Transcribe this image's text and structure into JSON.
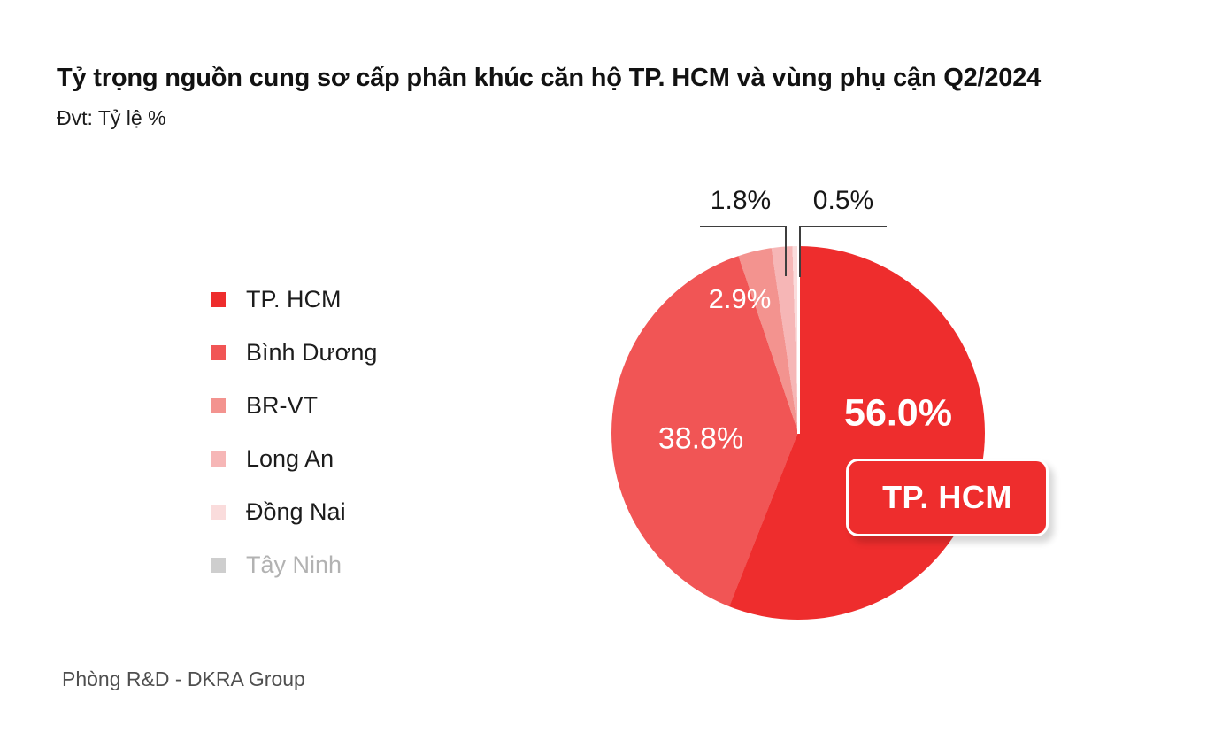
{
  "header": {
    "title": "Tỷ trọng nguồn cung sơ cấp phân khúc căn hộ TP. HCM và vùng phụ cận Q2/2024",
    "unit": "Đvt: Tỷ lệ %"
  },
  "footer": {
    "source": "Phòng R&D - DKRA Group"
  },
  "colors": {
    "accent_red": "#ee2d2d",
    "leader_line": "#3e3e3e",
    "muted_text": "#b2b2b2",
    "background": "#ffffff"
  },
  "chart_data": {
    "type": "pie",
    "title": "Tỷ trọng nguồn cung sơ cấp phân khúc căn hộ TP. HCM và vùng phụ cận Q2/2024",
    "unit": "Tỷ lệ %",
    "start_angle_deg": 0,
    "direction": "clockwise",
    "legend_position": "left",
    "highlight_badge": "TP. HCM",
    "slices": [
      {
        "name": "TP. HCM",
        "value": 56.0,
        "label": "56.0%",
        "color": "#ee2d2d"
      },
      {
        "name": "Bình Dương",
        "value": 38.8,
        "label": "38.8%",
        "color": "#f15555"
      },
      {
        "name": "BR-VT",
        "value": 2.9,
        "label": "2.9%",
        "color": "#f3938f"
      },
      {
        "name": "Long An",
        "value": 1.8,
        "label": "1.8%",
        "color": "#f6b6b6"
      },
      {
        "name": "Đồng Nai",
        "value": 0.5,
        "label": "0.5%",
        "color": "#fadcdc"
      },
      {
        "name": "Tây Ninh",
        "value": 0.0,
        "label": "",
        "color": "#cecece"
      }
    ]
  }
}
